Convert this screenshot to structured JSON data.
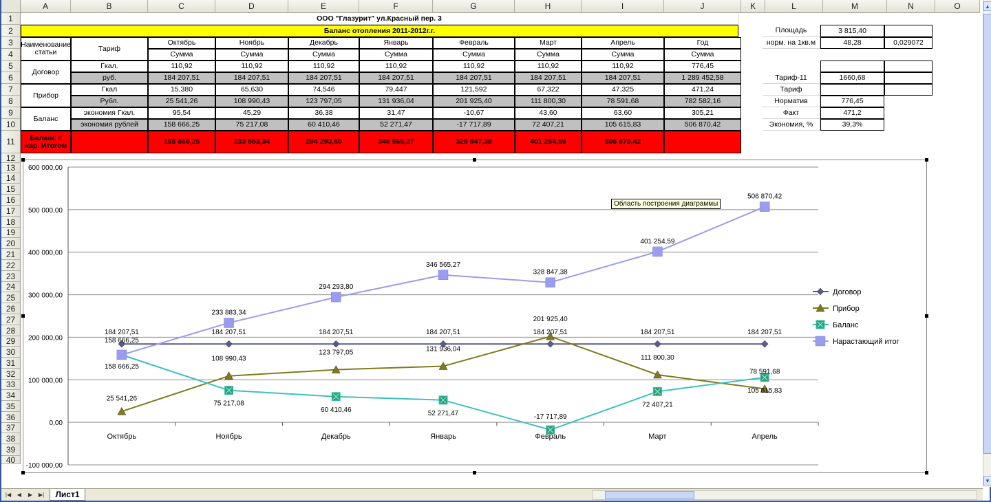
{
  "columns": [
    "A",
    "B",
    "C",
    "D",
    "E",
    "F",
    "G",
    "H",
    "I",
    "J",
    "K",
    "L",
    "M",
    "N",
    "O"
  ],
  "rows": [
    "1",
    "2",
    "3",
    "4",
    "5",
    "6",
    "7",
    "8",
    "9",
    "10",
    "11",
    "12",
    "13",
    "14",
    "15",
    "16",
    "17",
    "18",
    "19",
    "20",
    "21",
    "22",
    "23",
    "24",
    "25",
    "26",
    "27",
    "28",
    "29",
    "30",
    "31",
    "32",
    "33",
    "34",
    "35",
    "36",
    "37",
    "38",
    "39",
    "40"
  ],
  "sheet": {
    "title": "ООО \"Глазурит\" ул.Красный пер. 3",
    "subtitle": "Баланс отопления 2011-2012г.г.",
    "h_name": "Наименование статьи",
    "h_tarif": "Тариф",
    "months": [
      "Октябрь",
      "Ноябрь",
      "Декабрь",
      "Январь",
      "Февраль",
      "Март",
      "Апрель",
      "Год"
    ],
    "summa": "Сумма",
    "row_labels": {
      "dogovor": "Договор",
      "pribor": "Прибор",
      "balans": "Баланс",
      "itog": "Баланс с нар. Итогом"
    },
    "sub_labels": [
      "Гкал.",
      "руб.",
      "Гкал",
      "Рубл.",
      "экономия Гкал.",
      "экономия рублей"
    ],
    "data": [
      [
        "110,92",
        "110,92",
        "110,92",
        "110,92",
        "110,92",
        "110,92",
        "110,92",
        "776,45"
      ],
      [
        "184 207,51",
        "184 207,51",
        "184 207,51",
        "184 207,51",
        "184 207,51",
        "184 207,51",
        "184 207,51",
        "1 289 452,58"
      ],
      [
        "15,380",
        "65,630",
        "74,546",
        "79,447",
        "121,592",
        "67,322",
        "47,325",
        "471,24"
      ],
      [
        "25 541,26",
        "108 990,43",
        "123 797,05",
        "131 936,04",
        "201 925,40",
        "111 800,30",
        "78 591,68",
        "782 582,16"
      ],
      [
        "95,54",
        "45,29",
        "36,38",
        "31,47",
        "-10,67",
        "43,60",
        "63,60",
        "305,21"
      ],
      [
        "158 666,25",
        "75 217,08",
        "60 410,46",
        "52 271,47",
        "-17 717,89",
        "72 407,21",
        "105 615,83",
        "506 870,42"
      ]
    ],
    "itog": [
      "158 666,25",
      "233 883,34",
      "294 293,80",
      "346 565,27",
      "328 847,38",
      "401 254,59",
      "506 870,42",
      ""
    ],
    "side": {
      "l2": "Площадь",
      "m2": "3 815,40",
      "l3": "норм. на 1кв.м",
      "m3": "48,28",
      "n3": "0,029072",
      "l6": "Тариф-11",
      "m6": "1660,68",
      "l7": "Тариф",
      "l8": "Норматив",
      "m8": "776,45",
      "l9": "Факт",
      "m9": "471,2",
      "l10": "Экономия, %",
      "m10": "39,3%"
    }
  },
  "tooltip": "Область построения диаграммы",
  "tab": {
    "sheet_name": "Лист1"
  },
  "chart_data": {
    "type": "line",
    "categories": [
      "Октябрь",
      "Ноябрь",
      "Декабрь",
      "Январь",
      "Февраль",
      "Март",
      "Апрель"
    ],
    "ylim": [
      -100000,
      600000
    ],
    "yticks": [
      {
        "v": 600000,
        "label": "600 000,00"
      },
      {
        "v": 500000,
        "label": "500 000,00"
      },
      {
        "v": 400000,
        "label": "400 000,00"
      },
      {
        "v": 300000,
        "label": "300 000,00"
      },
      {
        "v": 200000,
        "label": "200 000,00"
      },
      {
        "v": 100000,
        "label": "100 000,00"
      },
      {
        "v": 0,
        "label": "0,00"
      },
      {
        "v": -100000,
        "label": "-100 000,00"
      }
    ],
    "grid": true,
    "legend": "right",
    "series": [
      {
        "name": "Договор",
        "color": "#5a5a8c",
        "marker": "diamond",
        "values": [
          184207.51,
          184207.51,
          184207.51,
          184207.51,
          184207.51,
          184207.51,
          184207.51
        ],
        "labels": [
          "184 207,51",
          "184 207,51",
          "184 207,51",
          "184 207,51",
          "184 207,51",
          "184 207,51",
          "184 207,51"
        ]
      },
      {
        "name": "Прибор",
        "color": "#807a1c",
        "marker": "triangle",
        "values": [
          25541.26,
          108990.43,
          123797.05,
          131936.04,
          201925.4,
          111800.3,
          78591.68
        ],
        "labels": [
          "25 541,26",
          "108 990,43",
          "123 797,05",
          "131 936,04",
          "201 925,40",
          "111 800,30",
          "78 591,68"
        ]
      },
      {
        "name": "Баланс",
        "color": "#3cc0c0",
        "marker": "square-x",
        "values": [
          158666.25,
          75217.08,
          60410.46,
          52271.47,
          -17717.89,
          72407.21,
          105615.83
        ],
        "labels": [
          "158 666,25",
          "75 217,08",
          "60 410,46",
          "52 271,47",
          "-17 717,89",
          "72 407,21",
          "105 615,83"
        ]
      },
      {
        "name": "Нарастающий итог",
        "color": "#9b9bf0",
        "marker": "square",
        "values": [
          158666.25,
          233883.34,
          294293.8,
          346565.27,
          328847.38,
          401254.59,
          506870.42
        ],
        "labels": [
          "158 666,25",
          "233 883,34",
          "294 293,80",
          "346 565,27",
          "328 847,38",
          "401 254,59",
          "506 870,42"
        ]
      }
    ]
  }
}
